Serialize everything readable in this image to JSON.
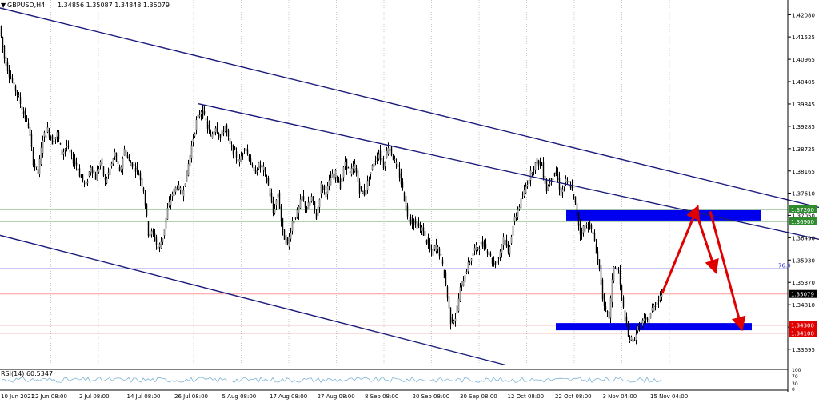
{
  "header": {
    "symbol": "GBPUSD,H4",
    "ohlc": "1.34856 1.35087 1.34848 1.35079",
    "marker": "▼"
  },
  "chart_data": {
    "type": "candlestick",
    "ylim": [
      1.3325,
      1.4245
    ],
    "price_ticks": [
      "1.42080",
      "1.41525",
      "1.40965",
      "1.40405",
      "1.39845",
      "1.39285",
      "1.38725",
      "1.38165",
      "1.37610",
      "1.37050",
      "1.36490",
      "1.35930",
      "1.35370",
      "1.34810",
      "1.34250",
      "1.33695"
    ],
    "date_labels": [
      "10 Jun 2021",
      "22 Jun 08:00",
      "2 Jul 08:00",
      "14 Jul 08:00",
      "26 Jul 08:00",
      "5 Aug 08:00",
      "17 Aug 08:00",
      "27 Aug 08:00",
      "8 Sep 08:00",
      "20 Sep 08:00",
      "30 Sep 08:00",
      "12 Oct 08:00",
      "22 Oct 08:00",
      "3 Nov 04:00",
      "15 Nov 04:00"
    ],
    "price_path": [
      [
        0,
        1.418
      ],
      [
        6,
        1.41
      ],
      [
        12,
        1.406
      ],
      [
        18,
        1.403
      ],
      [
        24,
        1.4
      ],
      [
        30,
        1.396
      ],
      [
        36,
        1.393
      ],
      [
        42,
        1.384
      ],
      [
        48,
        1.381
      ],
      [
        54,
        1.39
      ],
      [
        60,
        1.392
      ],
      [
        66,
        1.389
      ],
      [
        72,
        1.391
      ],
      [
        78,
        1.386
      ],
      [
        84,
        1.388
      ],
      [
        90,
        1.385
      ],
      [
        96,
        1.383
      ],
      [
        102,
        1.38
      ],
      [
        108,
        1.378
      ],
      [
        114,
        1.383
      ],
      [
        120,
        1.38
      ],
      [
        126,
        1.384
      ],
      [
        132,
        1.379
      ],
      [
        138,
        1.382
      ],
      [
        144,
        1.386
      ],
      [
        150,
        1.381
      ],
      [
        156,
        1.387
      ],
      [
        162,
        1.384
      ],
      [
        168,
        1.383
      ],
      [
        174,
        1.381
      ],
      [
        180,
        1.377
      ],
      [
        186,
        1.366
      ],
      [
        192,
        1.366
      ],
      [
        198,
        1.362
      ],
      [
        204,
        1.365
      ],
      [
        210,
        1.372
      ],
      [
        216,
        1.376
      ],
      [
        222,
        1.378
      ],
      [
        228,
        1.376
      ],
      [
        234,
        1.381
      ],
      [
        240,
        1.388
      ],
      [
        246,
        1.394
      ],
      [
        252,
        1.397
      ],
      [
        258,
        1.394
      ],
      [
        264,
        1.39
      ],
      [
        270,
        1.393
      ],
      [
        276,
        1.39
      ],
      [
        282,
        1.393
      ],
      [
        288,
        1.388
      ],
      [
        294,
        1.386
      ],
      [
        300,
        1.384
      ],
      [
        306,
        1.388
      ],
      [
        312,
        1.385
      ],
      [
        318,
        1.381
      ],
      [
        324,
        1.383
      ],
      [
        330,
        1.382
      ],
      [
        336,
        1.378
      ],
      [
        342,
        1.371
      ],
      [
        348,
        1.376
      ],
      [
        354,
        1.366
      ],
      [
        360,
        1.363
      ],
      [
        366,
        1.369
      ],
      [
        372,
        1.371
      ],
      [
        378,
        1.375
      ],
      [
        384,
        1.372
      ],
      [
        390,
        1.375
      ],
      [
        396,
        1.37
      ],
      [
        402,
        1.378
      ],
      [
        408,
        1.376
      ],
      [
        414,
        1.38
      ],
      [
        420,
        1.381
      ],
      [
        426,
        1.378
      ],
      [
        432,
        1.384
      ],
      [
        438,
        1.381
      ],
      [
        444,
        1.383
      ],
      [
        450,
        1.377
      ],
      [
        456,
        1.376
      ],
      [
        462,
        1.38
      ],
      [
        468,
        1.384
      ],
      [
        474,
        1.386
      ],
      [
        480,
        1.383
      ],
      [
        486,
        1.388
      ],
      [
        492,
        1.385
      ],
      [
        498,
        1.382
      ],
      [
        504,
        1.377
      ],
      [
        510,
        1.37
      ],
      [
        516,
        1.369
      ],
      [
        522,
        1.368
      ],
      [
        528,
        1.367
      ],
      [
        534,
        1.364
      ],
      [
        540,
        1.361
      ],
      [
        546,
        1.363
      ],
      [
        552,
        1.36
      ],
      [
        558,
        1.353
      ],
      [
        564,
        1.344
      ],
      [
        570,
        1.345
      ],
      [
        576,
        1.352
      ],
      [
        582,
        1.356
      ],
      [
        588,
        1.359
      ],
      [
        594,
        1.362
      ],
      [
        600,
        1.363
      ],
      [
        606,
        1.363
      ],
      [
        612,
        1.361
      ],
      [
        618,
        1.358
      ],
      [
        624,
        1.36
      ],
      [
        630,
        1.365
      ],
      [
        636,
        1.361
      ],
      [
        642,
        1.368
      ],
      [
        648,
        1.372
      ],
      [
        654,
        1.375
      ],
      [
        660,
        1.379
      ],
      [
        666,
        1.382
      ],
      [
        672,
        1.384
      ],
      [
        678,
        1.383
      ],
      [
        684,
        1.377
      ],
      [
        690,
        1.38
      ],
      [
        696,
        1.381
      ],
      [
        702,
        1.376
      ],
      [
        708,
        1.379
      ],
      [
        714,
        1.378
      ],
      [
        720,
        1.373
      ],
      [
        726,
        1.366
      ],
      [
        732,
        1.368
      ],
      [
        738,
        1.368
      ],
      [
        744,
        1.364
      ],
      [
        750,
        1.357
      ],
      [
        756,
        1.347
      ],
      [
        762,
        1.345
      ],
      [
        768,
        1.358
      ],
      [
        774,
        1.356
      ],
      [
        780,
        1.347
      ],
      [
        786,
        1.34
      ],
      [
        792,
        1.339
      ],
      [
        798,
        1.342
      ],
      [
        804,
        1.344
      ],
      [
        810,
        1.344
      ],
      [
        816,
        1.347
      ],
      [
        822,
        1.349
      ],
      [
        828,
        1.351
      ]
    ],
    "support_resistance_levels": [
      {
        "value": 1.372,
        "label": "1.37200",
        "color": "#2e8b2e"
      },
      {
        "value": 1.369,
        "label": "1.36900",
        "color": "#2e8b2e"
      },
      {
        "value": 1.3571,
        "label": "76.4",
        "color": "#2222cc"
      },
      {
        "value": 1.3508,
        "label": "1.35079",
        "color": "#ff9999"
      },
      {
        "value": 1.343,
        "label": "1.34300",
        "color": "#e00000"
      },
      {
        "value": 1.341,
        "label": "1.34100",
        "color": "#e00000"
      }
    ],
    "zones": [
      {
        "from": 1.37,
        "to": 1.3718,
        "x_start": 708,
        "x_end": 952,
        "color": "#0000ee"
      },
      {
        "from": 1.3425,
        "to": 1.3435,
        "x_start": 695,
        "x_end": 940,
        "color": "#0000ee"
      }
    ],
    "projection_arrows": [
      [
        [
          828,
          1.351
        ],
        [
          870,
          1.3715
        ]
      ],
      [
        [
          870,
          1.3715
        ],
        [
          893,
          1.3575
        ]
      ],
      [
        [
          888,
          1.3715
        ],
        [
          926,
          1.3432
        ]
      ]
    ],
    "trendlines": [
      [
        [
          0,
          1.4225
        ],
        [
          1024,
          1.3725
        ]
      ],
      [
        [
          248,
          1.3985
        ],
        [
          1024,
          1.3645
        ]
      ],
      [
        [
          0,
          1.3655
        ],
        [
          632,
          1.333
        ]
      ]
    ],
    "rsi": {
      "label": "RSI(14) 60.5347",
      "levels": [
        "100",
        "70",
        "30",
        "0"
      ]
    },
    "colors": {
      "up_candle": "#ffffff",
      "down_candle": "#000000",
      "trendline": "#1a1a7a",
      "arrow": "#e00000"
    }
  }
}
